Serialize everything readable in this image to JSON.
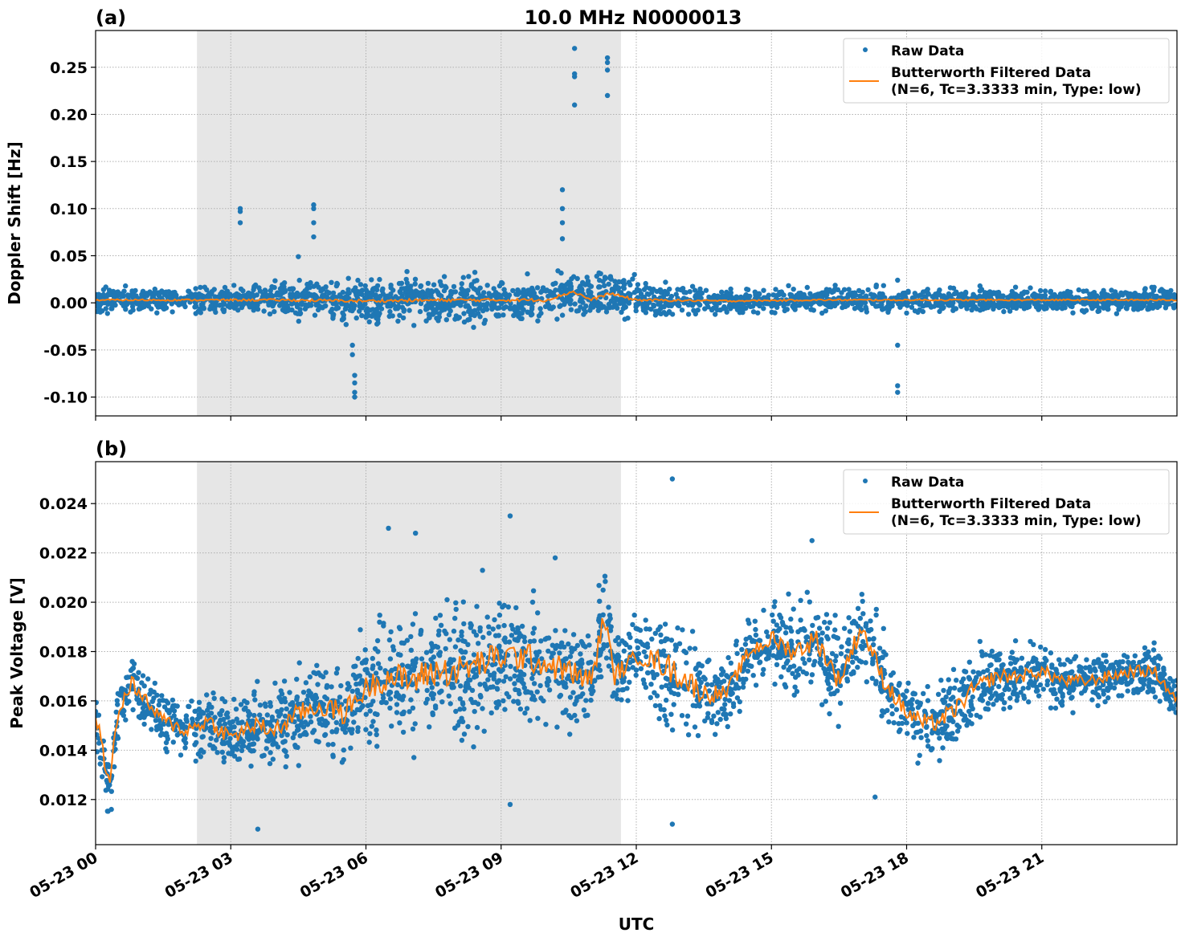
{
  "title": "10.0 MHz N0000013",
  "xlabel": "UTC",
  "x_tick_labels": [
    "05-23 00",
    "05-23 03",
    "05-23 06",
    "05-23 09",
    "05-23 12",
    "05-23 15",
    "05-23 18",
    "05-23 21"
  ],
  "legend": {
    "raw": "Raw Data",
    "filtered_line1": "Butterworth Filtered Data",
    "filtered_line2": "(N=6, Tc=3.3333 min, Type: low)"
  },
  "colors": {
    "raw": "#1f77b4",
    "filtered": "#ff7f0e",
    "shade": "#e6e6e6"
  },
  "chart_data": [
    {
      "type": "scatter",
      "panel_label": "(a)",
      "ylabel": "Doppler Shift [Hz]",
      "xlim_hours": [
        0,
        24
      ],
      "ylim": [
        -0.12,
        0.289
      ],
      "y_ticks": [
        "-0.10",
        "-0.05",
        "0.00",
        "0.05",
        "0.10",
        "0.15",
        "0.20",
        "0.25"
      ],
      "y_tick_values": [
        -0.1,
        -0.05,
        0.0,
        0.05,
        0.1,
        0.15,
        0.2,
        0.25
      ],
      "grid": true,
      "legend_position": "top-right",
      "shaded_interval_hours": [
        2.25,
        11.66
      ],
      "filtered_hours": [
        0,
        2,
        4,
        6,
        8,
        10,
        10.6,
        11,
        11.4,
        12,
        14,
        16,
        18,
        20,
        22,
        24
      ],
      "filtered_values": [
        0.003,
        0.003,
        0.003,
        0.002,
        0.003,
        0.003,
        0.012,
        0.003,
        0.01,
        0.003,
        0.002,
        0.003,
        0.003,
        0.003,
        0.003,
        0.003
      ],
      "raw_spread_hours": [
        0,
        2,
        4,
        6,
        8,
        10,
        11.7,
        12.5,
        14,
        16,
        18,
        20,
        22,
        24
      ],
      "raw_spread_halfwidth": [
        0.012,
        0.012,
        0.016,
        0.02,
        0.022,
        0.022,
        0.02,
        0.016,
        0.012,
        0.011,
        0.011,
        0.011,
        0.011,
        0.012
      ],
      "outliers": [
        [
          3.21,
          0.1
        ],
        [
          3.21,
          0.097
        ],
        [
          3.21,
          0.085
        ],
        [
          4.84,
          0.104
        ],
        [
          4.84,
          0.1
        ],
        [
          4.84,
          0.085
        ],
        [
          4.84,
          0.07
        ],
        [
          4.5,
          0.049
        ],
        [
          5.7,
          -0.055
        ],
        [
          5.7,
          -0.045
        ],
        [
          5.75,
          -0.077
        ],
        [
          5.75,
          -0.085
        ],
        [
          5.75,
          -0.095
        ],
        [
          5.75,
          -0.1
        ],
        [
          10.36,
          0.12
        ],
        [
          10.36,
          0.1
        ],
        [
          10.36,
          0.085
        ],
        [
          10.36,
          0.068
        ],
        [
          10.63,
          0.27
        ],
        [
          10.63,
          0.243
        ],
        [
          10.63,
          0.24
        ],
        [
          10.63,
          0.21
        ],
        [
          11.36,
          0.26
        ],
        [
          11.36,
          0.255
        ],
        [
          11.36,
          0.247
        ],
        [
          11.36,
          0.22
        ],
        [
          17.8,
          -0.045
        ],
        [
          17.8,
          -0.088
        ],
        [
          17.8,
          -0.095
        ],
        [
          17.8,
          0.024
        ]
      ]
    },
    {
      "type": "scatter",
      "panel_label": "(b)",
      "ylabel": "Peak Voltage [V]",
      "xlim_hours": [
        0,
        24
      ],
      "ylim": [
        0.01017,
        0.0257
      ],
      "y_ticks": [
        "0.012",
        "0.014",
        "0.016",
        "0.018",
        "0.020",
        "0.022",
        "0.024"
      ],
      "y_tick_values": [
        0.012,
        0.014,
        0.016,
        0.018,
        0.02,
        0.022,
        0.024
      ],
      "grid": true,
      "legend_position": "top-right",
      "shaded_interval_hours": [
        2.25,
        11.66
      ],
      "filtered_hours": [
        0,
        0.3,
        0.5,
        0.8,
        1,
        1.5,
        2,
        2.5,
        3,
        3.5,
        4,
        4.5,
        5,
        5.5,
        6,
        6.5,
        7,
        7.5,
        8,
        8.5,
        9,
        9.5,
        10,
        10.5,
        11,
        11.3,
        11.5,
        12,
        12.5,
        13,
        13.5,
        14,
        14.5,
        15,
        15.5,
        16,
        16.5,
        17,
        17.5,
        18,
        18.5,
        19,
        19.5,
        20,
        20.5,
        21,
        21.5,
        22,
        22.5,
        23,
        23.5,
        24
      ],
      "filtered_values": [
        0.0155,
        0.0126,
        0.0155,
        0.0168,
        0.0162,
        0.0152,
        0.0148,
        0.0152,
        0.0145,
        0.015,
        0.0148,
        0.0155,
        0.0158,
        0.0155,
        0.0165,
        0.017,
        0.0168,
        0.0172,
        0.0172,
        0.0175,
        0.0178,
        0.0178,
        0.0175,
        0.0172,
        0.0168,
        0.0195,
        0.017,
        0.0178,
        0.0176,
        0.017,
        0.0163,
        0.0163,
        0.018,
        0.0185,
        0.018,
        0.0185,
        0.0168,
        0.019,
        0.0168,
        0.0155,
        0.015,
        0.0155,
        0.0165,
        0.017,
        0.017,
        0.0172,
        0.0168,
        0.0168,
        0.017,
        0.0172,
        0.0172,
        0.016
      ],
      "raw_spread_hours": [
        0,
        2,
        4,
        6,
        7,
        9,
        11,
        12,
        12.8,
        14,
        15,
        16,
        17,
        18,
        19,
        20,
        22,
        24
      ],
      "raw_spread_halfwidth": [
        0.0012,
        0.0012,
        0.0015,
        0.002,
        0.0025,
        0.0025,
        0.002,
        0.0012,
        0.0025,
        0.0012,
        0.0015,
        0.0018,
        0.0015,
        0.0015,
        0.0015,
        0.0012,
        0.001,
        0.001
      ],
      "outliers": [
        [
          0.35,
          0.0116
        ],
        [
          3.6,
          0.0108
        ],
        [
          7.1,
          0.0228
        ],
        [
          6.5,
          0.023
        ],
        [
          9.2,
          0.0235
        ],
        [
          12.8,
          0.025
        ],
        [
          12.8,
          0.011
        ],
        [
          15.9,
          0.0225
        ],
        [
          17.3,
          0.0121
        ],
        [
          9.2,
          0.0118
        ],
        [
          10.2,
          0.0218
        ]
      ]
    }
  ]
}
